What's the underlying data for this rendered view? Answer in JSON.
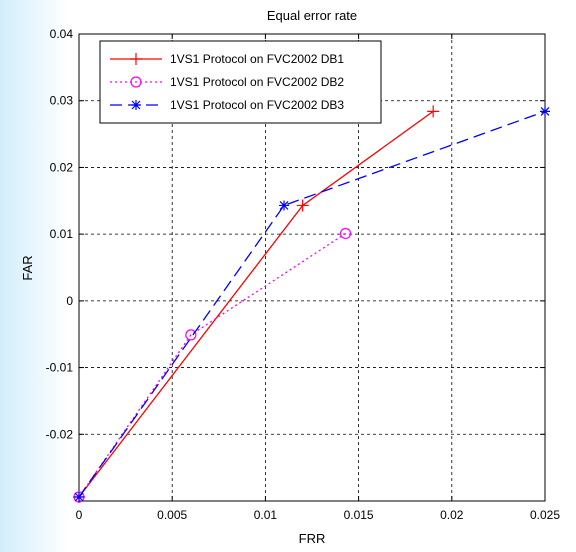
{
  "chart_data": {
    "type": "line",
    "title": "Equal error rate",
    "xlabel": "FRR",
    "ylabel": "FAR",
    "xlim": [
      0,
      0.025
    ],
    "ylim": [
      -0.03,
      0.04
    ],
    "xticks": [
      0,
      0.005,
      0.01,
      0.015,
      0.02,
      0.025
    ],
    "xtick_labels": [
      "0",
      "0.005",
      "0.01",
      "0.015",
      "0.02",
      "0.025"
    ],
    "yticks": [
      -0.02,
      -0.01,
      0,
      0.01,
      0.02,
      0.03,
      0.04
    ],
    "ytick_labels": [
      "-0.02",
      "-0.01",
      "0",
      "0.01",
      "0.02",
      "0.03",
      "0.04"
    ],
    "grid": true,
    "legend_position": "top-left",
    "series": [
      {
        "name": "1VS1 Protocol on FVC2002 DB1",
        "color": "#ff0000",
        "line_style": "solid",
        "marker": "plus",
        "x": [
          0,
          0.012,
          0.019
        ],
        "y": [
          -0.0294,
          0.0143,
          0.0284
        ]
      },
      {
        "name": "1VS1 Protocol on FVC2002 DB2",
        "color": "#ff00ff",
        "line_style": "dotted",
        "marker": "circle",
        "x": [
          0,
          0.006,
          0.0143
        ],
        "y": [
          -0.0294,
          -0.0051,
          0.0101
        ]
      },
      {
        "name": "1VS1 Protocol on FVC2002 DB3",
        "color": "#0000ff",
        "line_style": "dashed",
        "marker": "star",
        "x": [
          0,
          0.011,
          0.025
        ],
        "y": [
          -0.0294,
          0.0143,
          0.0284
        ]
      }
    ]
  }
}
